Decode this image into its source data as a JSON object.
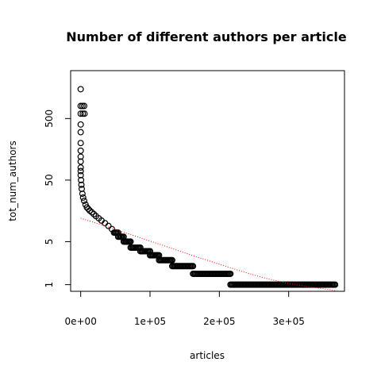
{
  "chart_data": {
    "type": "scatter",
    "title": "Number of different authors per article",
    "xlabel": "articles",
    "ylabel": "tot_num_authors",
    "x_ticks": [
      {
        "value": 0,
        "label": "0e+00"
      },
      {
        "value": 100000,
        "label": "1e+05"
      },
      {
        "value": 200000,
        "label": "2e+05"
      },
      {
        "value": 300000,
        "label": "3e+05"
      }
    ],
    "y_ticks": [
      {
        "value": 1,
        "label": "1"
      },
      {
        "value": 5,
        "label": "5"
      },
      {
        "value": 50,
        "label": "50"
      },
      {
        "value": 500,
        "label": "500"
      }
    ],
    "y_scale": "log",
    "xlim": [
      -14500,
      380500
    ],
    "ylim": [
      0.78,
      3000
    ],
    "grid": false,
    "legend": "none",
    "points": [
      [
        0,
        1500
      ],
      [
        0,
        800
      ],
      [
        2500,
        800
      ],
      [
        5000,
        800
      ],
      [
        0,
        600
      ],
      [
        3000,
        600
      ],
      [
        5500,
        600
      ],
      [
        0,
        400
      ],
      [
        0,
        300
      ],
      [
        0,
        200
      ],
      [
        0,
        150
      ],
      [
        0,
        120
      ],
      [
        0,
        100
      ],
      [
        0,
        80
      ],
      [
        0,
        70
      ],
      [
        0,
        60
      ],
      [
        500,
        50
      ],
      [
        1000,
        42
      ],
      [
        1500,
        36
      ],
      [
        2500,
        30
      ],
      [
        3500,
        26
      ],
      [
        5000,
        23
      ],
      [
        7000,
        20
      ],
      [
        9000,
        18
      ],
      [
        11000,
        17
      ],
      [
        13000,
        16
      ],
      [
        16000,
        15
      ],
      [
        19000,
        14
      ],
      [
        22000,
        13
      ],
      [
        26000,
        12
      ],
      [
        30000,
        11
      ],
      [
        35000,
        10
      ],
      [
        40000,
        9
      ],
      [
        45000,
        8
      ],
      [
        51000,
        7
      ],
      [
        58000,
        6
      ],
      [
        66000,
        5
      ],
      [
        76000,
        4
      ],
      [
        88000,
        3.5
      ]
    ],
    "steps": [
      {
        "y": 7,
        "x_start": 48000,
        "x_end": 54000
      },
      {
        "y": 6,
        "x_start": 54000,
        "x_end": 62000
      },
      {
        "y": 5,
        "x_start": 62000,
        "x_end": 72000
      },
      {
        "y": 4,
        "x_start": 72000,
        "x_end": 86000
      },
      {
        "y": 3.5,
        "x_start": 86000,
        "x_end": 100000
      },
      {
        "y": 3,
        "x_start": 100000,
        "x_end": 113000
      },
      {
        "y": 2.5,
        "x_start": 113000,
        "x_end": 132000
      },
      {
        "y": 2,
        "x_start": 132000,
        "x_end": 162000
      },
      {
        "y": 1.5,
        "x_start": 162000,
        "x_end": 216000
      },
      {
        "y": 1,
        "x_start": 216000,
        "x_end": 367000
      }
    ],
    "fit_line": {
      "color": "#ff0000",
      "style": "dotted",
      "points": [
        [
          0,
          12
        ],
        [
          20000,
          10.2
        ],
        [
          40000,
          8.6
        ],
        [
          60000,
          7.2
        ],
        [
          80000,
          6.1
        ],
        [
          100000,
          5.1
        ],
        [
          120000,
          4.3
        ],
        [
          140000,
          3.6
        ],
        [
          160000,
          3.0
        ],
        [
          180000,
          2.55
        ],
        [
          200000,
          2.15
        ],
        [
          220000,
          1.82
        ],
        [
          240000,
          1.55
        ],
        [
          260000,
          1.33
        ],
        [
          280000,
          1.17
        ],
        [
          300000,
          1.05
        ],
        [
          320000,
          0.96
        ],
        [
          340000,
          0.89
        ],
        [
          360000,
          0.83
        ],
        [
          367000,
          0.8
        ]
      ]
    }
  }
}
